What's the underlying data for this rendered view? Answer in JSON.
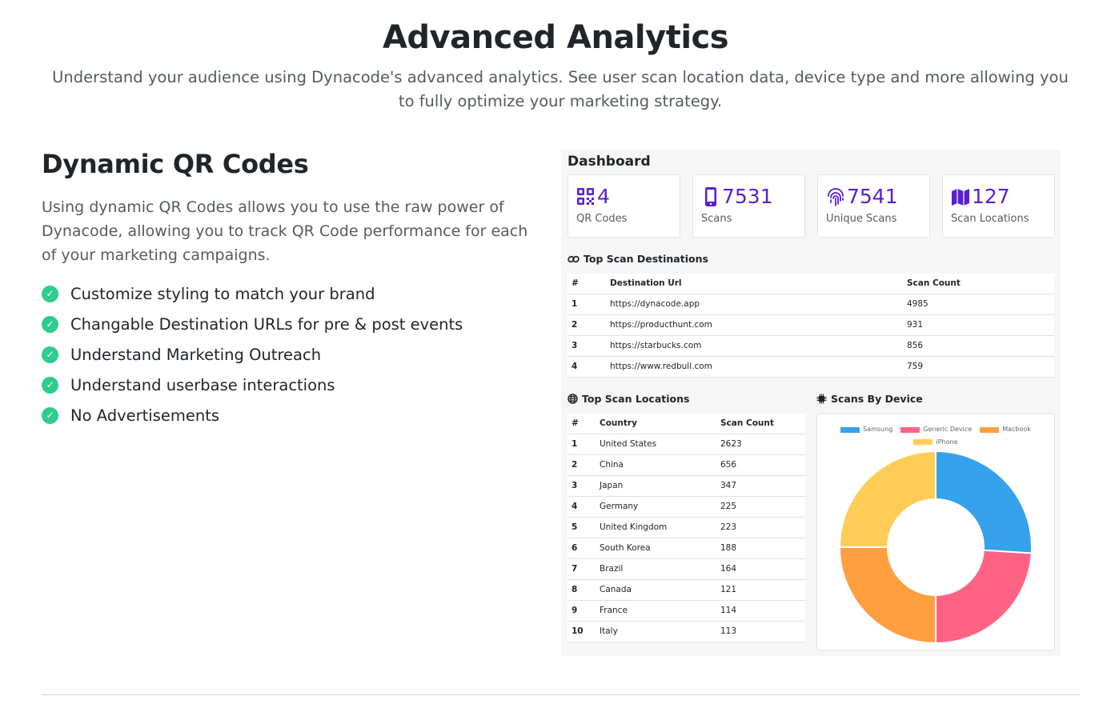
{
  "hero": {
    "title": "Advanced Analytics",
    "subtitle": "Understand your audience using Dynacode's advanced analytics. See user scan location data, device type and more allowing you to fully optimize your marketing strategy."
  },
  "feature": {
    "title": "Dynamic QR Codes",
    "description": "Using dynamic QR Codes allows you to use the raw power of Dynacode, allowing you to track QR Code performance for each of your marketing campaigns.",
    "items": [
      "Customize styling to match your brand",
      "Changable Destination URLs for pre & post events",
      "Understand Marketing Outreach",
      "Understand userbase interactions",
      "No Advertisements"
    ],
    "check_icon": "check-circle-icon"
  },
  "dashboard": {
    "title": "Dashboard",
    "accent_color": "#5a1fd1",
    "stats": [
      {
        "value": "4",
        "label": "QR Codes",
        "icon": "qrcode-icon"
      },
      {
        "value": "7531",
        "label": "Scans",
        "icon": "mobile-icon"
      },
      {
        "value": "7541",
        "label": "Unique Scans",
        "icon": "fingerprint-icon"
      },
      {
        "value": "127",
        "label": "Scan Locations",
        "icon": "map-icon"
      }
    ],
    "destinations": {
      "heading": "Top Scan Destinations",
      "icon": "link-icon",
      "columns": [
        "#",
        "Destination Url",
        "Scan Count"
      ],
      "rows": [
        [
          "1",
          "https://dynacode.app",
          "4985"
        ],
        [
          "2",
          "https://producthunt.com",
          "931"
        ],
        [
          "3",
          "https://starbucks.com",
          "856"
        ],
        [
          "4",
          "https://www.redbull.com",
          "759"
        ]
      ]
    },
    "locations": {
      "heading": "Top Scan Locations",
      "icon": "globe-icon",
      "columns": [
        "#",
        "Country",
        "Scan Count"
      ],
      "rows": [
        [
          "1",
          "United States",
          "2623"
        ],
        [
          "2",
          "China",
          "656"
        ],
        [
          "3",
          "Japan",
          "347"
        ],
        [
          "4",
          "Germany",
          "225"
        ],
        [
          "5",
          "United Kingdom",
          "223"
        ],
        [
          "6",
          "South Korea",
          "188"
        ],
        [
          "7",
          "Brazil",
          "164"
        ],
        [
          "8",
          "Canada",
          "121"
        ],
        [
          "9",
          "France",
          "114"
        ],
        [
          "10",
          "Italy",
          "113"
        ]
      ]
    },
    "devices": {
      "heading": "Scans By Device",
      "icon": "microchip-icon"
    }
  },
  "chart_data": {
    "type": "pie",
    "variant": "doughnut",
    "title": "",
    "legend_position": "top",
    "categories": [
      "Samsung",
      "Generic Device",
      "Macbook",
      "iPhone"
    ],
    "values": [
      26,
      24,
      25,
      25
    ],
    "colors": [
      "#36a2eb",
      "#ff6384",
      "#ff9f40",
      "#ffcd56"
    ]
  }
}
